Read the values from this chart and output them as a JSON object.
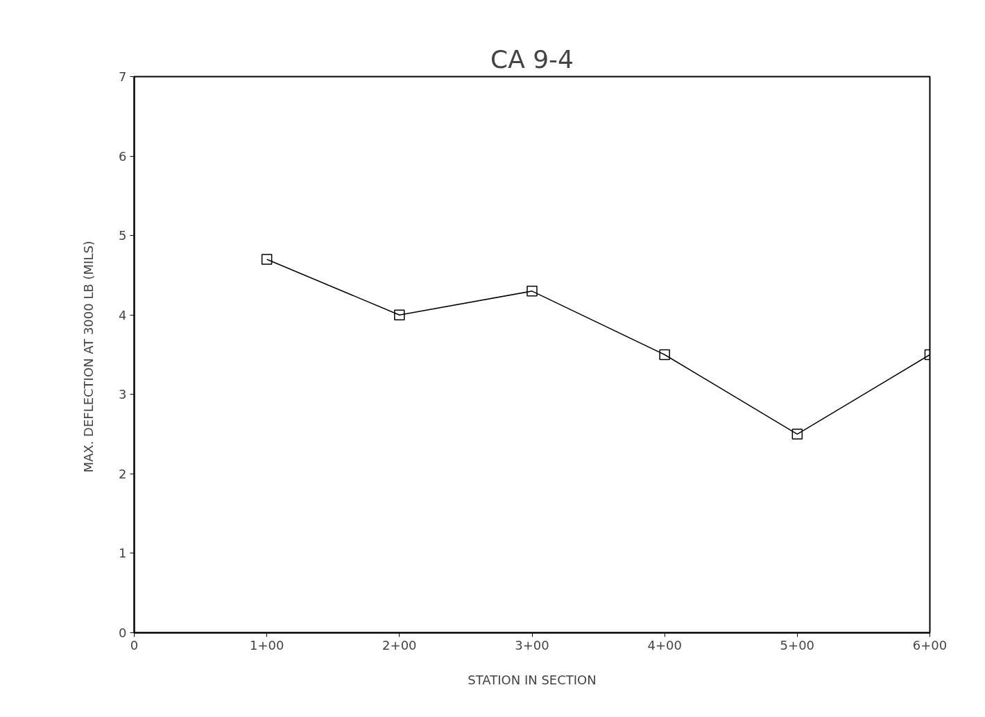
{
  "chart_data": {
    "type": "line",
    "title": "CA 9-4",
    "xlabel": "STATION IN SECTION",
    "ylabel": "MAX. DEFLECTION AT 3000 LB  (MILS)",
    "categories": [
      "0",
      "1+00",
      "2+00",
      "3+00",
      "4+00",
      "5+00",
      "6+00"
    ],
    "values": [
      null,
      4.7,
      4.0,
      4.3,
      3.5,
      2.5,
      3.5
    ],
    "color": "#000000",
    "marker": "square",
    "line_style": "solid",
    "grid": false,
    "ylim": [
      0,
      7
    ],
    "yticks": [
      0,
      1,
      2,
      3,
      4,
      5,
      6,
      7
    ]
  }
}
